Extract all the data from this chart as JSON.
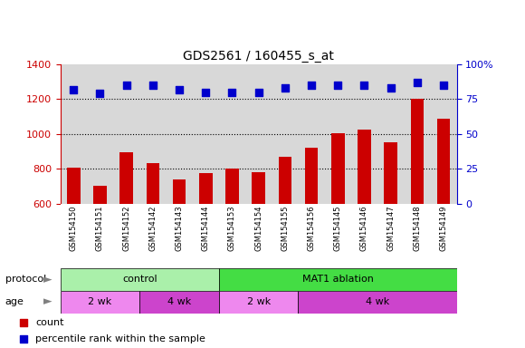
{
  "title": "GDS2561 / 160455_s_at",
  "samples": [
    "GSM154150",
    "GSM154151",
    "GSM154152",
    "GSM154142",
    "GSM154143",
    "GSM154144",
    "GSM154153",
    "GSM154154",
    "GSM154155",
    "GSM154156",
    "GSM154145",
    "GSM154146",
    "GSM154147",
    "GSM154148",
    "GSM154149"
  ],
  "bar_values": [
    805,
    703,
    893,
    833,
    740,
    775,
    802,
    780,
    868,
    920,
    1002,
    1025,
    950,
    1200,
    1090
  ],
  "dot_values": [
    82,
    79,
    85,
    85,
    82,
    80,
    80,
    80,
    83,
    85,
    85,
    85,
    83,
    87,
    85
  ],
  "bar_color": "#cc0000",
  "dot_color": "#0000cc",
  "left_ylim": [
    600,
    1400
  ],
  "left_yticks": [
    600,
    800,
    1000,
    1200,
    1400
  ],
  "right_ylim": [
    0,
    100
  ],
  "right_yticks": [
    0,
    25,
    50,
    75,
    100
  ],
  "right_yticklabels": [
    "0",
    "25",
    "50",
    "75",
    "100%"
  ],
  "grid_values": [
    800,
    1000,
    1200
  ],
  "protocol_groups": [
    {
      "label": "control",
      "start": 0,
      "end": 6,
      "color": "#aaf0aa"
    },
    {
      "label": "MAT1 ablation",
      "start": 6,
      "end": 15,
      "color": "#44dd44"
    }
  ],
  "age_groups": [
    {
      "label": "2 wk",
      "start": 0,
      "end": 3,
      "color": "#ee88ee"
    },
    {
      "label": "4 wk",
      "start": 3,
      "end": 6,
      "color": "#cc44cc"
    },
    {
      "label": "2 wk",
      "start": 6,
      "end": 9,
      "color": "#ee88ee"
    },
    {
      "label": "4 wk",
      "start": 9,
      "end": 15,
      "color": "#cc44cc"
    }
  ],
  "legend_count_label": "count",
  "legend_pct_label": "percentile rank within the sample",
  "left_label_color": "#cc0000",
  "right_label_color": "#0000cc",
  "plot_bg_color": "#d8d8d8",
  "fig_bg_color": "#ffffff"
}
